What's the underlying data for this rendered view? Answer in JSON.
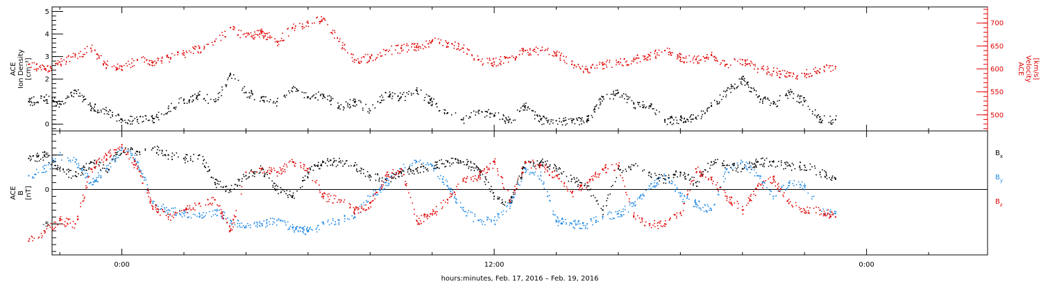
{
  "chart_data": [
    {
      "type": "scatter",
      "panel": "density-velocity",
      "left_axis": {
        "label_lines": [
          "ACE",
          "Ion Density",
          "[cm⁻³]"
        ],
        "ylim": [
          -0.3,
          5.2
        ],
        "ticks": [
          0,
          1,
          2,
          3,
          4,
          5
        ],
        "tick_labels": [
          "0",
          "1",
          "2",
          "3",
          "4",
          "5"
        ],
        "color": "#000000"
      },
      "right_axis": {
        "label_lines": [
          "ACE",
          "Velocity",
          "[km/s]"
        ],
        "ylim": [
          465,
          735
        ],
        "ticks": [
          500,
          550,
          600,
          650,
          700
        ],
        "tick_labels": [
          "500",
          "550",
          "600",
          "650",
          "700"
        ],
        "color": "#e00000"
      },
      "series": [
        {
          "color": "#000000",
          "axis": "left",
          "x": [
            -3.0,
            -2.5,
            -2.0,
            -1.5,
            -1.0,
            -0.5,
            0.0,
            0.5,
            1.0,
            1.5,
            2.0,
            2.5,
            3.0,
            3.5,
            4.0,
            4.5,
            5.0,
            5.5,
            6.0,
            6.5,
            7.0,
            7.5,
            8.0,
            8.5,
            9.0,
            9.5,
            10.0,
            10.5,
            11.0,
            11.5,
            12.0,
            12.5,
            13.0,
            13.5,
            14.0,
            14.5,
            15.0,
            15.5,
            16.0,
            16.5,
            17.0,
            17.5,
            18.0,
            18.5,
            19.0,
            19.5,
            20.0,
            20.5,
            21.0,
            21.5,
            22.0,
            22.5,
            23.0
          ],
          "y": [
            1.0,
            1.2,
            0.9,
            1.5,
            0.8,
            0.6,
            0.2,
            0.2,
            0.25,
            0.7,
            1.1,
            1.3,
            1.0,
            2.2,
            1.4,
            1.2,
            1.0,
            1.6,
            1.2,
            1.3,
            0.8,
            1.0,
            0.6,
            1.4,
            1.2,
            1.5,
            1.0,
            0.5,
            0.2,
            0.6,
            0.4,
            0.2,
            0.8,
            0.2,
            0.15,
            0.15,
            0.2,
            1.2,
            1.4,
            0.9,
            0.8,
            0.2,
            0.2,
            0.3,
            0.8,
            1.5,
            2.0,
            1.2,
            0.9,
            1.4,
            1.0,
            0.2,
            0.2
          ]
        },
        {
          "color": "#e00000",
          "axis": "right",
          "x": [
            -3.0,
            -2.5,
            -2.0,
            -1.5,
            -1.0,
            -0.5,
            0.0,
            0.5,
            1.0,
            1.5,
            2.0,
            2.5,
            3.0,
            3.5,
            4.0,
            4.5,
            5.0,
            5.5,
            6.0,
            6.5,
            7.0,
            7.5,
            8.0,
            8.5,
            9.0,
            9.5,
            10.0,
            10.5,
            11.0,
            11.5,
            12.0,
            12.5,
            13.0,
            13.5,
            14.0,
            14.5,
            15.0,
            15.5,
            16.0,
            16.5,
            17.0,
            17.5,
            18.0,
            18.5,
            19.0,
            19.5,
            20.0,
            20.5,
            21.0,
            21.5,
            22.0,
            22.5,
            23.0
          ],
          "y": [
            610,
            600,
            615,
            630,
            645,
            610,
            605,
            620,
            615,
            625,
            635,
            645,
            660,
            690,
            670,
            680,
            660,
            690,
            700,
            710,
            660,
            620,
            625,
            640,
            645,
            650,
            660,
            655,
            645,
            620,
            615,
            625,
            640,
            640,
            635,
            610,
            600,
            610,
            615,
            620,
            630,
            640,
            625,
            620,
            630,
            610,
            620,
            600,
            595,
            585,
            590,
            600,
            605
          ]
        }
      ]
    },
    {
      "type": "scatter",
      "panel": "magnetic-field",
      "left_axis": {
        "label_lines": [
          "ACE",
          "B",
          "[nT]"
        ],
        "ylim": [
          -9.5,
          8.5
        ],
        "ticks": [
          -5,
          0,
          5
        ],
        "tick_labels": [
          "-5",
          "0",
          "5"
        ],
        "color": "#000000"
      },
      "zero_line": true,
      "legend": {
        "position": "right",
        "entries": [
          {
            "label": "B",
            "sub": "x",
            "color": "#000000"
          },
          {
            "label": "B",
            "sub": "y",
            "color": "#1e88e5"
          },
          {
            "label": "B",
            "sub": "z",
            "color": "#e00000"
          }
        ]
      },
      "series": [
        {
          "name": "Bx",
          "color": "#000000",
          "x": [
            -3.0,
            -2.5,
            -2.0,
            -1.5,
            -1.0,
            -0.5,
            0.0,
            0.5,
            1.0,
            1.5,
            2.0,
            2.5,
            3.0,
            3.5,
            4.0,
            4.5,
            5.0,
            5.5,
            6.0,
            6.5,
            7.0,
            7.5,
            8.0,
            8.5,
            9.0,
            9.5,
            10.0,
            10.5,
            11.0,
            11.5,
            12.0,
            12.5,
            13.0,
            13.5,
            14.0,
            14.5,
            15.0,
            15.5,
            16.0,
            16.5,
            17.0,
            17.5,
            18.0,
            18.5,
            19.0,
            19.5,
            20.0,
            20.5,
            21.0,
            21.5,
            22.0,
            22.5,
            23.0
          ],
          "y": [
            4.5,
            5.0,
            3.0,
            2.0,
            4.0,
            3.0,
            6.0,
            5.5,
            6.0,
            5.0,
            4.5,
            5.0,
            1.0,
            0.0,
            2.0,
            3.0,
            0.0,
            -1.0,
            2.5,
            4.0,
            4.0,
            3.5,
            2.0,
            1.5,
            2.5,
            3.0,
            3.5,
            4.0,
            4.0,
            3.0,
            -1.0,
            -2.0,
            4.0,
            4.0,
            3.0,
            1.5,
            0.5,
            -3.0,
            3.0,
            3.5,
            2.5,
            1.5,
            2.5,
            1.0,
            4.0,
            3.5,
            3.0,
            4.0,
            4.0,
            3.5,
            3.5,
            2.5,
            1.5
          ]
        },
        {
          "name": "By",
          "color": "#1e88e5",
          "x": [
            -3.0,
            -2.5,
            -2.0,
            -1.5,
            -1.0,
            -0.5,
            0.0,
            0.5,
            1.0,
            1.5,
            2.0,
            2.5,
            3.0,
            3.5,
            4.0,
            4.5,
            5.0,
            5.5,
            6.0,
            6.5,
            7.0,
            7.5,
            8.0,
            8.5,
            9.0,
            9.5,
            10.0,
            10.5,
            11.0,
            11.5,
            12.0,
            12.5,
            13.0,
            13.5,
            14.0,
            14.5,
            15.0,
            15.5,
            16.0,
            16.5,
            17.0,
            17.5,
            18.0,
            18.5,
            19.0,
            19.5,
            20.0,
            20.5,
            21.0,
            21.5,
            22.0,
            22.5,
            23.0
          ],
          "y": [
            2.0,
            3.0,
            5.0,
            4.0,
            1.0,
            3.0,
            6.0,
            4.0,
            -2.0,
            -3.0,
            -3.5,
            -4.0,
            -3.0,
            -4.5,
            -5.5,
            -5.0,
            -4.5,
            -5.5,
            -6.0,
            -5.0,
            -4.5,
            -3.5,
            -1.0,
            1.0,
            3.0,
            4.0,
            3.5,
            0.5,
            -3.0,
            -4.5,
            -4.5,
            -2.0,
            3.0,
            2.0,
            -4.5,
            -5.0,
            -5.0,
            -4.0,
            -3.5,
            -2.0,
            0.5,
            2.0,
            -1.0,
            -2.0,
            -3.0,
            3.0,
            4.0,
            2.0,
            -1.0,
            1.0,
            0.5,
            -3.0,
            -3.5
          ]
        },
        {
          "name": "Bz",
          "color": "#e00000",
          "x": [
            -3.0,
            -2.5,
            -2.0,
            -1.5,
            -1.0,
            -0.5,
            0.0,
            0.5,
            1.0,
            1.5,
            2.0,
            2.5,
            3.0,
            3.5,
            4.0,
            4.5,
            5.0,
            5.5,
            6.0,
            6.5,
            7.0,
            7.5,
            8.0,
            8.5,
            9.0,
            9.5,
            10.0,
            10.5,
            11.0,
            11.5,
            12.0,
            12.5,
            13.0,
            13.5,
            14.0,
            14.5,
            15.0,
            15.5,
            16.0,
            16.5,
            17.0,
            17.5,
            18.0,
            18.5,
            19.0,
            19.5,
            20.0,
            20.5,
            21.0,
            21.5,
            22.0,
            22.5,
            23.0
          ],
          "y": [
            -7.5,
            -6.0,
            -4.5,
            -5.0,
            3.0,
            5.0,
            6.5,
            3.0,
            -2.5,
            -4.0,
            -3.0,
            -2.0,
            -1.5,
            -6.0,
            2.5,
            3.0,
            2.5,
            4.0,
            3.0,
            -1.0,
            -1.5,
            -3.0,
            -2.0,
            2.0,
            3.0,
            -4.5,
            -3.5,
            -1.5,
            1.5,
            2.0,
            4.0,
            -1.5,
            4.0,
            3.5,
            2.0,
            -0.5,
            1.0,
            3.0,
            3.5,
            -4.0,
            -5.0,
            -5.0,
            -3.5,
            3.0,
            1.5,
            -1.0,
            -3.0,
            0.5,
            1.5,
            -2.0,
            -3.0,
            -3.0,
            -4.0
          ]
        }
      ]
    }
  ],
  "x_axis": {
    "ticks": [
      0,
      12,
      24
    ],
    "tick_labels": [
      "0:00",
      "12:00",
      "0:00"
    ],
    "xlim": [
      -2.25,
      27.9
    ],
    "label": "hours:minutes, Feb. 17, 2016 – Feb. 19, 2016"
  }
}
